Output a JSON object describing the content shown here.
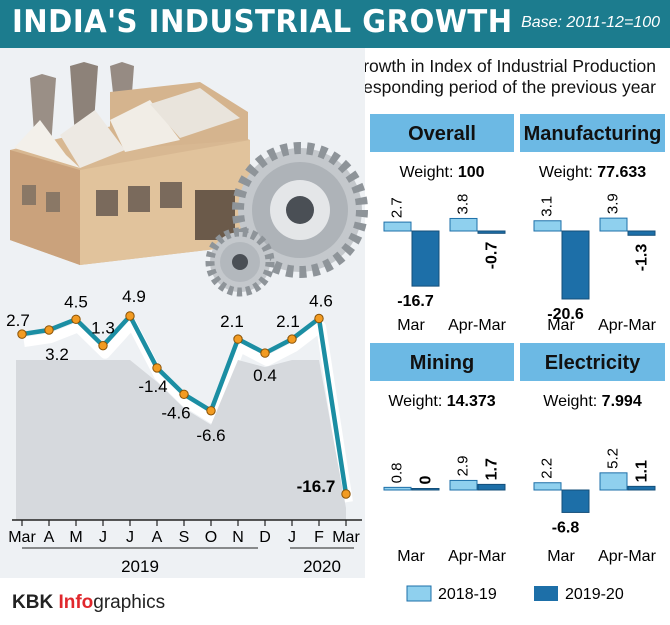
{
  "header": {
    "title": "INDIA'S INDUSTRIAL GROWTH",
    "base": "Base: 2011-12=100",
    "subtitle_line1": "Per cent growth in Index of Industrial Production",
    "subtitle_line2": "over corresponding period of the previous year"
  },
  "footer": {
    "brand_part1": "KBK ",
    "brand_part2": "Info",
    "brand_part3": "graphics"
  },
  "legend": [
    {
      "label": "2018-19",
      "color": "#8fd0ee"
    },
    {
      "label": "2019-20",
      "color": "#1d6fa8"
    }
  ],
  "colors": {
    "header": "#1c7c8e",
    "line": "#1b8ea3",
    "marker": "#f29b22",
    "band": "#6cb9e4"
  },
  "icons": {
    "illustration": "factory-icon",
    "gears": "gears-icon"
  },
  "chart_data": [
    {
      "type": "line",
      "title": "",
      "categories": [
        "Mar",
        "A",
        "M",
        "J",
        "J",
        "A",
        "S",
        "O",
        "N",
        "D",
        "J",
        "F",
        "Mar"
      ],
      "values": [
        2.7,
        3.2,
        4.5,
        1.3,
        4.9,
        -1.4,
        -4.6,
        -6.6,
        2.1,
        0.4,
        2.1,
        4.6,
        -16.7
      ],
      "value_labels": [
        "2.7",
        "3.2",
        "4.5",
        "1.3",
        "4.9",
        "-1.4",
        "-4.6",
        "-6.6",
        "2.1",
        "0.4",
        "2.1",
        "4.6",
        "-16.7"
      ],
      "year_labels": [
        "2019",
        "2020"
      ],
      "ylim": [
        -18,
        6
      ],
      "grid": false
    },
    {
      "type": "bar",
      "title": "Overall",
      "weight_label": "Weight: ",
      "weight": "100",
      "categories": [
        "Mar",
        "Apr-Mar"
      ],
      "series": [
        {
          "name": "2018-19",
          "values": [
            2.7,
            3.8
          ]
        },
        {
          "name": "2019-20",
          "values": [
            -16.7,
            -0.7
          ]
        }
      ],
      "value_labels": [
        [
          "2.7",
          "3.8"
        ],
        [
          "-16.7",
          "-0.7"
        ]
      ]
    },
    {
      "type": "bar",
      "title": "Manufacturing",
      "weight_label": "Weight: ",
      "weight": "77.633",
      "categories": [
        "Mar",
        "Apr-Mar"
      ],
      "series": [
        {
          "name": "2018-19",
          "values": [
            3.1,
            3.9
          ]
        },
        {
          "name": "2019-20",
          "values": [
            -20.6,
            -1.3
          ]
        }
      ],
      "value_labels": [
        [
          "3.1",
          "3.9"
        ],
        [
          "-20.6",
          "-1.3"
        ]
      ]
    },
    {
      "type": "bar",
      "title": "Mining",
      "weight_label": "Weight: ",
      "weight": "14.373",
      "categories": [
        "Mar",
        "Apr-Mar"
      ],
      "series": [
        {
          "name": "2018-19",
          "values": [
            0.8,
            2.9
          ]
        },
        {
          "name": "2019-20",
          "values": [
            0,
            1.7
          ]
        }
      ],
      "value_labels": [
        [
          "0.8",
          "2.9"
        ],
        [
          "0",
          "1.7"
        ]
      ]
    },
    {
      "type": "bar",
      "title": "Electricity",
      "weight_label": "Weight: ",
      "weight": "7.994",
      "categories": [
        "Mar",
        "Apr-Mar"
      ],
      "series": [
        {
          "name": "2018-19",
          "values": [
            2.2,
            5.2
          ]
        },
        {
          "name": "2019-20",
          "values": [
            -6.8,
            1.1
          ]
        }
      ],
      "value_labels": [
        [
          "2.2",
          "5.2"
        ],
        [
          "-6.8",
          "1.1"
        ]
      ]
    }
  ]
}
